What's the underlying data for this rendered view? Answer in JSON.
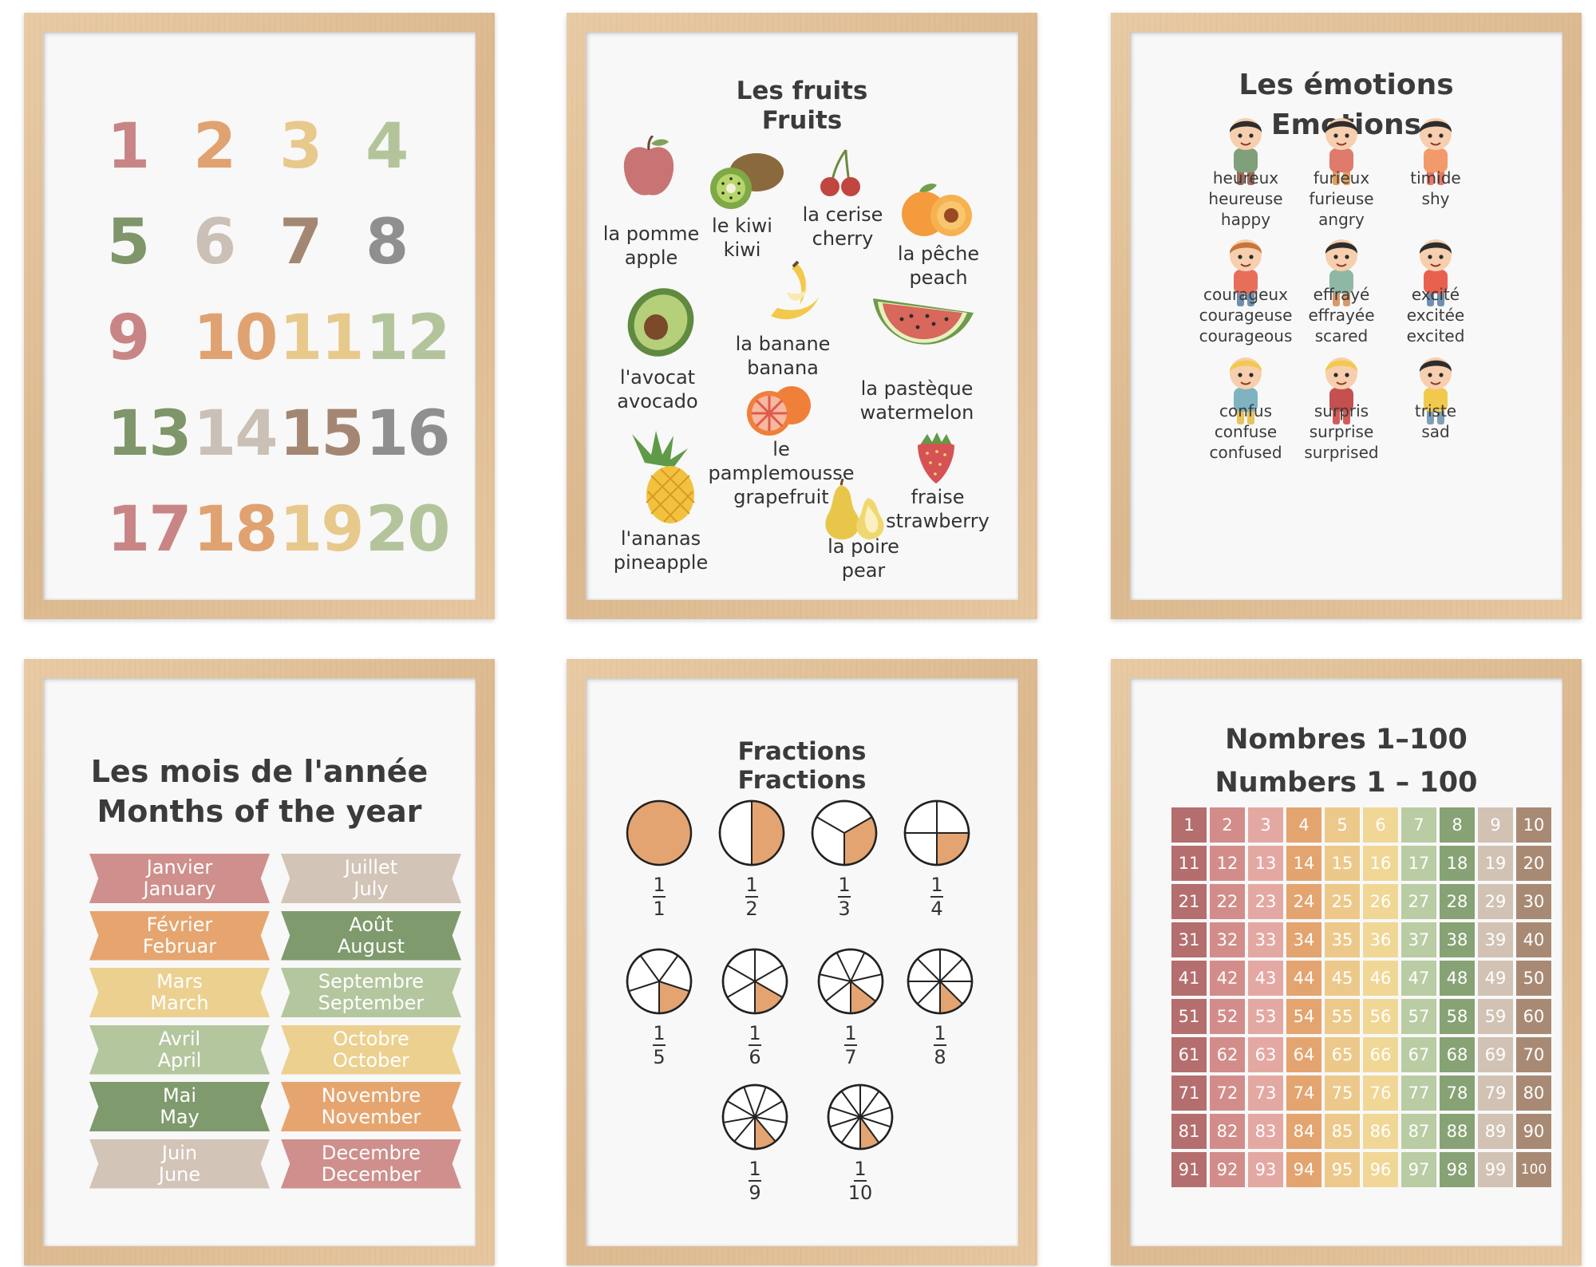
{
  "numbers_poster": {
    "items": [
      {
        "label": "1",
        "color": "#c98586"
      },
      {
        "label": "2",
        "color": "#e0a270"
      },
      {
        "label": "3",
        "color": "#e8c98c"
      },
      {
        "label": "4",
        "color": "#b3c49b"
      },
      {
        "label": "5",
        "color": "#7e9669"
      },
      {
        "label": "6",
        "color": "#cbc0b5"
      },
      {
        "label": "7",
        "color": "#a48772"
      },
      {
        "label": "8",
        "color": "#8f8f8f"
      },
      {
        "label": "9",
        "color": "#c98586"
      },
      {
        "label": "10",
        "color": "#e0a270"
      },
      {
        "label": "11",
        "color": "#e8c98c"
      },
      {
        "label": "12",
        "color": "#b3c49b"
      },
      {
        "label": "13",
        "color": "#7e9669"
      },
      {
        "label": "14",
        "color": "#cbc0b5"
      },
      {
        "label": "15",
        "color": "#a48772"
      },
      {
        "label": "16",
        "color": "#8f8f8f"
      },
      {
        "label": "17",
        "color": "#c98586"
      },
      {
        "label": "18",
        "color": "#e0a270"
      },
      {
        "label": "19",
        "color": "#e8c98c"
      },
      {
        "label": "20",
        "color": "#b3c49b"
      }
    ]
  },
  "fruits_poster": {
    "title_fr": "Les fruits",
    "title_en": "Fruits",
    "fruits": [
      {
        "fr": "la pomme",
        "en": "apple"
      },
      {
        "fr": "le kiwi",
        "en": "kiwi"
      },
      {
        "fr": "la cerise",
        "en": "cherry"
      },
      {
        "fr": "la pêche",
        "en": "peach"
      },
      {
        "fr": "l'avocat",
        "en": "avocado"
      },
      {
        "fr": "la banane",
        "en": "banana"
      },
      {
        "fr": "la pastèque",
        "en": "watermelon"
      },
      {
        "fr": "le pamplemousse",
        "en": "grapefruit"
      },
      {
        "fr": "l'ananas",
        "en": "pineapple"
      },
      {
        "fr": "la poire",
        "en": "pear"
      },
      {
        "fr": "fraise",
        "en": "strawberry"
      }
    ]
  },
  "emotions_poster": {
    "title_fr": "Les émotions",
    "title_en": "Emotions",
    "emotions": [
      {
        "lines": [
          "heureux",
          "heureuse",
          "happy"
        ]
      },
      {
        "lines": [
          "furieux",
          "furieuse",
          "angry"
        ]
      },
      {
        "lines": [
          "timide",
          "shy"
        ]
      },
      {
        "lines": [
          "courageux",
          "courageuse",
          "courageous"
        ]
      },
      {
        "lines": [
          "effrayé",
          "effrayée",
          "scared"
        ]
      },
      {
        "lines": [
          "excité",
          "excitée",
          "excited"
        ]
      },
      {
        "lines": [
          "confus",
          "confuse",
          "confused"
        ]
      },
      {
        "lines": [
          "surpris",
          "surprise",
          "surprised"
        ]
      },
      {
        "lines": [
          "triste",
          "sad"
        ]
      }
    ]
  },
  "months_poster": {
    "title_fr": "Les mois de l'année",
    "title_en": "Months of the year",
    "months": [
      {
        "fr": "Janvier",
        "en": "January",
        "color": "#cf8f8c"
      },
      {
        "fr": "Février",
        "en": "Februar",
        "color": "#e6a56f"
      },
      {
        "fr": "Mars",
        "en": "March",
        "color": "#ecd08f"
      },
      {
        "fr": "Avril",
        "en": "April",
        "color": "#b4c69e"
      },
      {
        "fr": "Mai",
        "en": "May",
        "color": "#7f9a6c"
      },
      {
        "fr": "Juin",
        "en": "June",
        "color": "#d3c4b8"
      },
      {
        "fr": "Juillet",
        "en": "July",
        "color": "#d3c4b8"
      },
      {
        "fr": "Août",
        "en": "August",
        "color": "#7f9a6c"
      },
      {
        "fr": "Septembre",
        "en": "September",
        "color": "#b4c69e"
      },
      {
        "fr": "Octobre",
        "en": "October",
        "color": "#ecd08f"
      },
      {
        "fr": "Novembre",
        "en": "November",
        "color": "#e6a56f"
      },
      {
        "fr": "Decembre",
        "en": "December",
        "color": "#cf8f8c"
      }
    ]
  },
  "fractions_poster": {
    "title_fr": "Fractions",
    "title_en": "Fractions",
    "fractions": [
      {
        "num": "1",
        "den": "1"
      },
      {
        "num": "1",
        "den": "2"
      },
      {
        "num": "1",
        "den": "3"
      },
      {
        "num": "1",
        "den": "4"
      },
      {
        "num": "1",
        "den": "5"
      },
      {
        "num": "1",
        "den": "6"
      },
      {
        "num": "1",
        "den": "7"
      },
      {
        "num": "1",
        "den": "8"
      },
      {
        "num": "1",
        "den": "9"
      },
      {
        "num": "1",
        "den": "10"
      }
    ],
    "fill_color": "#e3a472"
  },
  "hundreds_poster": {
    "title_fr": "Nombres 1–100",
    "title_en": "Numbers 1 – 100",
    "column_colors": [
      "#b56e6e",
      "#d28d8a",
      "#e4a8a3",
      "#e3a470",
      "#ecc98a",
      "#f0d796",
      "#b9cca3",
      "#87a274",
      "#d1c2b4",
      "#a88a74"
    ]
  }
}
